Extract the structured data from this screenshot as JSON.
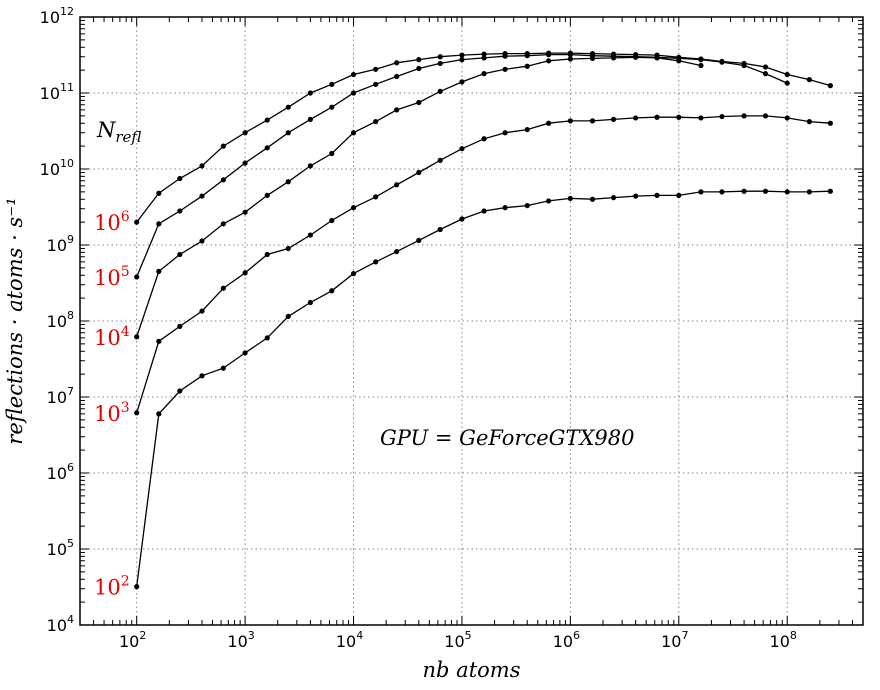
{
  "chart_data": {
    "type": "line",
    "xlabel": "nb atoms",
    "ylabel": "reflections · atoms · s⁻¹",
    "xscale": "log",
    "yscale": "log",
    "xlim": [
      30,
      500000000
    ],
    "ylim": [
      10000,
      1000000000000
    ],
    "grid": true,
    "x_ticks": [
      {
        "base": "10",
        "exp": "2"
      },
      {
        "base": "10",
        "exp": "3"
      },
      {
        "base": "10",
        "exp": "4"
      },
      {
        "base": "10",
        "exp": "5"
      },
      {
        "base": "10",
        "exp": "6"
      },
      {
        "base": "10",
        "exp": "7"
      },
      {
        "base": "10",
        "exp": "8"
      }
    ],
    "y_ticks": [
      {
        "base": "10",
        "exp": "4"
      },
      {
        "base": "10",
        "exp": "5"
      },
      {
        "base": "10",
        "exp": "6"
      },
      {
        "base": "10",
        "exp": "7"
      },
      {
        "base": "10",
        "exp": "8"
      },
      {
        "base": "10",
        "exp": "9"
      },
      {
        "base": "10",
        "exp": "10"
      },
      {
        "base": "10",
        "exp": "11"
      },
      {
        "base": "10",
        "exp": "12"
      }
    ],
    "annotations": {
      "n_refl": "N_refl",
      "gpu": "GPU = GeForceGTX980"
    },
    "series": [
      {
        "label_base": "10",
        "label_exp": "2",
        "x": [
          100,
          160,
          250,
          400,
          630,
          1000,
          1600,
          2500,
          4000,
          6300,
          10000,
          16000,
          25000,
          40000,
          63000,
          100000,
          160000,
          250000,
          400000,
          630000,
          1000000,
          1600000,
          2500000,
          4000000,
          6300000,
          10000000,
          16000000,
          25000000,
          40000000,
          63000000,
          100000000,
          160000000,
          250000000
        ],
        "y": [
          32000,
          6000000,
          12000000,
          19000000,
          24000000,
          38000000,
          60000000,
          115000000,
          175000000,
          250000000,
          420000000,
          600000000,
          820000000,
          1150000000,
          1600000000,
          2200000000,
          2800000000,
          3100000000,
          3300000000,
          3800000000,
          4100000000,
          4000000000,
          4200000000,
          4400000000,
          4500000000,
          4500000000,
          5000000000,
          5000000000,
          5100000000,
          5100000000,
          5000000000,
          5000000000,
          5100000000
        ]
      },
      {
        "label_base": "10",
        "label_exp": "3",
        "x": [
          100,
          160,
          250,
          400,
          630,
          1000,
          1600,
          2500,
          4000,
          6300,
          10000,
          16000,
          25000,
          40000,
          63000,
          100000,
          160000,
          250000,
          400000,
          630000,
          1000000,
          1600000,
          2500000,
          4000000,
          6300000,
          10000000,
          16000000,
          25000000,
          40000000,
          63000000,
          100000000,
          160000000,
          250000000
        ],
        "y": [
          6200000,
          54000000,
          85000000,
          135000000,
          270000000,
          430000000,
          750000000,
          900000000,
          1350000000,
          2100000000,
          3100000000,
          4300000000,
          6200000000,
          9000000000,
          13000000000,
          18500000000,
          25000000000,
          30000000000,
          33000000000,
          40000000000,
          43000000000,
          43000000000,
          45000000000,
          47000000000,
          48000000000,
          48000000000,
          47000000000,
          49000000000,
          50000000000,
          50000000000,
          47000000000,
          42000000000,
          40000000000
        ]
      },
      {
        "label_base": "10",
        "label_exp": "4",
        "x": [
          100,
          160,
          250,
          400,
          630,
          1000,
          1600,
          2500,
          4000,
          6300,
          10000,
          16000,
          25000,
          40000,
          63000,
          100000,
          160000,
          250000,
          400000,
          630000,
          1000000,
          1600000,
          2500000,
          4000000,
          6300000,
          10000000,
          16000000
        ],
        "y": [
          62000000,
          450000000,
          750000000,
          1130000000,
          1900000000,
          2700000000,
          4500000000,
          6800000000,
          11000000000,
          16000000000,
          30000000000,
          42000000000,
          60000000000,
          75000000000,
          105000000000,
          140000000000,
          180000000000,
          205000000000,
          225000000000,
          265000000000,
          280000000000,
          285000000000,
          290000000000,
          295000000000,
          290000000000,
          265000000000,
          230000000000
        ]
      },
      {
        "label_base": "10",
        "label_exp": "5",
        "x": [
          100,
          160,
          250,
          400,
          630,
          1000,
          1600,
          2500,
          4000,
          6300,
          10000,
          16000,
          25000,
          40000,
          63000,
          100000,
          160000,
          250000,
          400000,
          630000,
          1000000,
          1600000,
          2500000,
          4000000,
          6300000,
          10000000,
          16000000,
          25000000,
          40000000,
          63000000,
          100000000
        ],
        "y": [
          380000000,
          1900000000,
          2800000000,
          4400000000,
          7200000000,
          12000000000,
          19000000000,
          30000000000,
          45000000000,
          65000000000,
          100000000000,
          130000000000,
          165000000000,
          210000000000,
          245000000000,
          275000000000,
          290000000000,
          305000000000,
          310000000000,
          320000000000,
          320000000000,
          310000000000,
          305000000000,
          300000000000,
          295000000000,
          285000000000,
          275000000000,
          255000000000,
          230000000000,
          180000000000,
          135000000000
        ]
      },
      {
        "label_base": "10",
        "label_exp": "6",
        "x": [
          100,
          160,
          250,
          400,
          630,
          1000,
          1600,
          2500,
          4000,
          6300,
          10000,
          16000,
          25000,
          40000,
          63000,
          100000,
          160000,
          250000,
          400000,
          630000,
          1000000,
          1600000,
          2500000,
          4000000,
          6300000,
          10000000,
          16000000,
          25000000,
          40000000,
          63000000,
          100000000,
          160000000,
          250000000
        ],
        "y": [
          2000000000,
          4800000000,
          7500000000,
          11000000000,
          20000000000,
          30000000000,
          44000000000,
          65000000000,
          100000000000,
          130000000000,
          175000000000,
          205000000000,
          250000000000,
          275000000000,
          300000000000,
          315000000000,
          325000000000,
          330000000000,
          330000000000,
          335000000000,
          335000000000,
          330000000000,
          325000000000,
          320000000000,
          315000000000,
          295000000000,
          280000000000,
          260000000000,
          245000000000,
          220000000000,
          175000000000,
          150000000000,
          125000000000
        ]
      }
    ]
  }
}
